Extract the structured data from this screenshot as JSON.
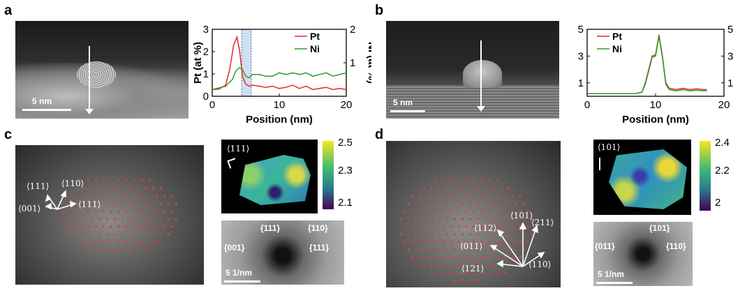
{
  "panels": {
    "a": "a",
    "b": "b",
    "c": "c",
    "d": "d"
  },
  "scalebars": {
    "a": "5 nm",
    "b": "5 nm",
    "c_fft": "5 1/nm",
    "d_fft": "5 1/nm"
  },
  "chart_data": [
    {
      "type": "line",
      "panel": "a",
      "xlabel": "Position (nm)",
      "ylabel": "Pt (at %)",
      "ylabel_right": "Ni (at %)",
      "xlim": [
        0,
        20
      ],
      "ylim": [
        0,
        3
      ],
      "ylim_right": [
        0,
        2
      ],
      "xticks": [
        "0",
        "10",
        "20"
      ],
      "yticks": [
        "0",
        "1",
        "2",
        "3"
      ],
      "yticks_right": [
        "1",
        "2"
      ],
      "highlight_band": [
        4.4,
        5.8
      ],
      "series": [
        {
          "name": "Pt",
          "color": "#e8262b",
          "axis": "left",
          "x": [
            0,
            1,
            2,
            2.6,
            3.2,
            3.7,
            4.1,
            4.5,
            5.0,
            5.5,
            6,
            7,
            8,
            9,
            10,
            11,
            12,
            13,
            14,
            15,
            16,
            17,
            18,
            19,
            20
          ],
          "y": [
            0.3,
            0.32,
            0.5,
            1.2,
            2.3,
            2.65,
            2.0,
            0.9,
            0.55,
            0.45,
            0.5,
            0.45,
            0.4,
            0.45,
            0.35,
            0.4,
            0.5,
            0.35,
            0.45,
            0.3,
            0.35,
            0.4,
            0.3,
            0.35,
            0.3
          ]
        },
        {
          "name": "Ni",
          "color": "#2a9d2a",
          "axis": "right",
          "x": [
            0,
            1,
            2,
            3,
            3.5,
            4,
            4.5,
            5,
            5.5,
            6,
            7,
            8,
            9,
            10,
            11,
            12,
            13,
            14,
            15,
            16,
            17,
            18,
            19,
            20
          ],
          "y": [
            0.2,
            0.25,
            0.3,
            0.5,
            0.75,
            0.85,
            0.8,
            0.6,
            0.55,
            0.65,
            0.65,
            0.6,
            0.6,
            0.7,
            0.65,
            0.7,
            0.65,
            0.7,
            0.6,
            0.65,
            0.7,
            0.6,
            0.65,
            0.7
          ]
        }
      ]
    },
    {
      "type": "line",
      "panel": "b",
      "xlabel": "Position (nm)",
      "xlim": [
        0,
        20
      ],
      "ylim": [
        0,
        5
      ],
      "ylim_right": [
        0,
        5
      ],
      "xticks": [
        "0",
        "10",
        "20"
      ],
      "yticks": [
        "1",
        "3",
        "5"
      ],
      "yticks_right": [
        "1",
        "3",
        "5"
      ],
      "series": [
        {
          "name": "Pt",
          "color": "#e8262b",
          "x": [
            0,
            1,
            2,
            3,
            4,
            5,
            6,
            7,
            8,
            8.5,
            9,
            9.5,
            10,
            10.5,
            11,
            11.5,
            12,
            13,
            14,
            15,
            16,
            17,
            17.5
          ],
          "y": [
            0.2,
            0.2,
            0.2,
            0.2,
            0.2,
            0.2,
            0.2,
            0.2,
            0.3,
            1.0,
            2.0,
            3.0,
            3.1,
            4.6,
            3.0,
            1.0,
            0.6,
            0.5,
            0.6,
            0.5,
            0.55,
            0.5,
            0.5
          ]
        },
        {
          "name": "Ni",
          "color": "#2a9d2a",
          "x": [
            0,
            1,
            2,
            3,
            4,
            5,
            6,
            7,
            8,
            8.5,
            9,
            9.5,
            10,
            10.5,
            11,
            11.5,
            12,
            13,
            14,
            15,
            16,
            17,
            17.5
          ],
          "y": [
            0.2,
            0.2,
            0.2,
            0.2,
            0.2,
            0.2,
            0.2,
            0.2,
            0.3,
            0.9,
            1.9,
            2.9,
            3.0,
            4.5,
            2.9,
            0.9,
            0.5,
            0.4,
            0.5,
            0.4,
            0.45,
            0.4,
            0.4
          ]
        }
      ]
    }
  ],
  "panel_c": {
    "directions": [
      "⟨111⟩",
      "⟨110⟩",
      "⟨001⟩",
      "⟨111⟩"
    ],
    "map_label": "⟨111⟩",
    "colorbar": [
      "2.5",
      "2.3",
      "2.1"
    ],
    "fft_labels": [
      "{111}",
      "{110}",
      "{001}",
      "{111}"
    ]
  },
  "panel_d": {
    "directions": [
      "⟨101⟩",
      "⟨211⟩",
      "⟨112⟩",
      "⟨011⟩",
      "⟨121⟩",
      "⟨110⟩"
    ],
    "map_label": "⟨101⟩",
    "colorbar": [
      "2.4",
      "2.2",
      "2"
    ],
    "fft_labels": [
      "{101}",
      "{011}",
      "{110}"
    ]
  }
}
